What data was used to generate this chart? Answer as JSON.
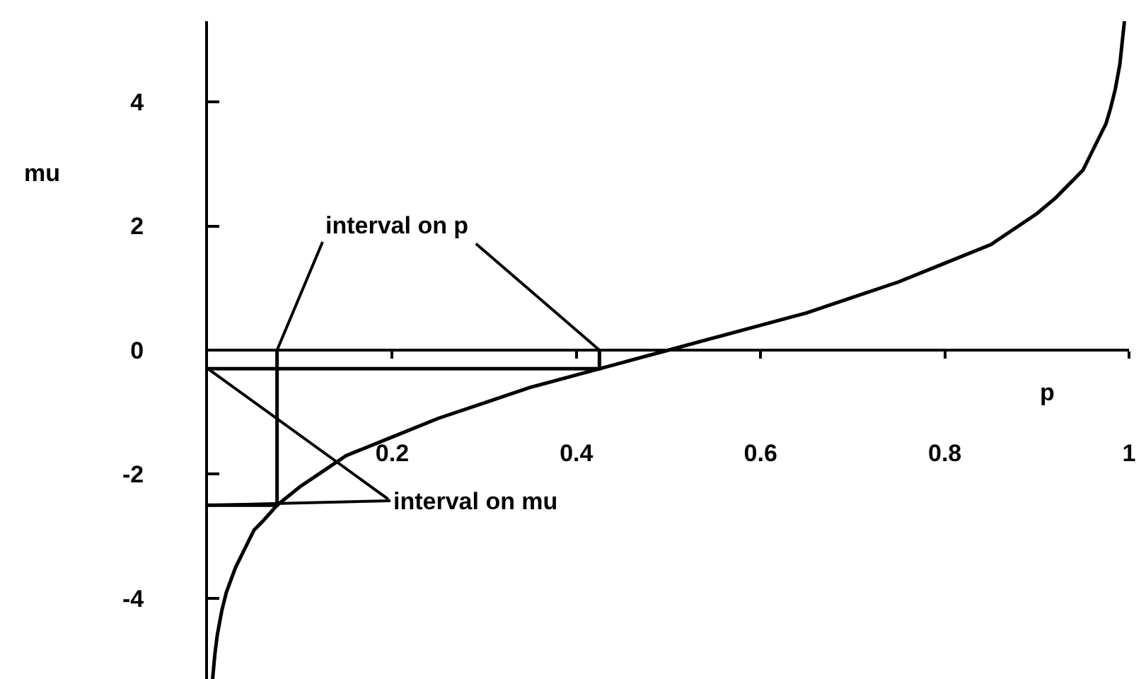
{
  "chart_data": {
    "type": "line",
    "xlabel": "p",
    "ylabel": "mu",
    "xlim": [
      0,
      1
    ],
    "ylim": [
      -5.3,
      5.3
    ],
    "xticks": [
      0.2,
      0.4,
      0.6,
      0.8,
      1
    ],
    "yticks": [
      -4,
      -2,
      0,
      2,
      4
    ],
    "series": [
      {
        "color": "#000000",
        "x": [
          0.005,
          0.0075,
          0.01,
          0.0125,
          0.015,
          0.02,
          0.025,
          0.03,
          0.04,
          0.05,
          0.06,
          0.075,
          0.1,
          0.125,
          0.15,
          0.2,
          0.25,
          0.3,
          0.35,
          0.4,
          0.45,
          0.5,
          0.55,
          0.6,
          0.65,
          0.7,
          0.75,
          0.8,
          0.85,
          0.88,
          0.9,
          0.92,
          0.93,
          0.94,
          0.95,
          0.96,
          0.97,
          0.975,
          0.98,
          0.985,
          0.99,
          0.995
        ],
        "values": [
          -5.3,
          -4.9,
          -4.6,
          -4.4,
          -4.2,
          -3.9,
          -3.7,
          -3.5,
          -3.2,
          -2.9,
          -2.75,
          -2.5,
          -2.2,
          -1.95,
          -1.7,
          -1.4,
          -1.1,
          -0.85,
          -0.6,
          -0.4,
          -0.2,
          0,
          0.2,
          0.4,
          0.6,
          0.85,
          1.1,
          1.4,
          1.7,
          2.0,
          2.2,
          2.45,
          2.6,
          2.75,
          2.9,
          3.2,
          3.5,
          3.65,
          3.9,
          4.2,
          4.6,
          5.3
        ]
      },
      {
        "color": "#000000",
        "x": [
          0,
          0.425,
          0.425
        ],
        "values": [
          -0.3,
          -0.3,
          0
        ]
      },
      {
        "color": "#000000",
        "x": [
          0,
          0.075,
          0.075
        ],
        "values": [
          -2.5,
          -2.5,
          0
        ]
      }
    ],
    "annotations": [
      {
        "text": "interval on p",
        "x": 0.075,
        "y": 0
      },
      {
        "text": "interval on mu",
        "x": 0,
        "y": -2.5
      }
    ]
  }
}
